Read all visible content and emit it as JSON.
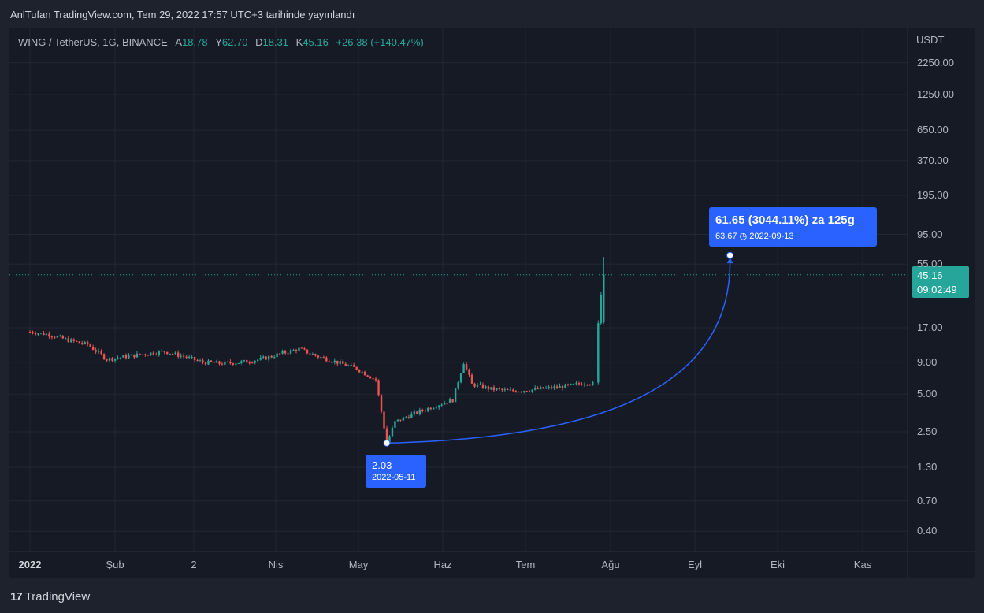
{
  "header": {
    "publication": "AnlTufan TradingView.com, Tem 29, 2022 17:57 UTC+3 tarihinde yayınlandı"
  },
  "legend": {
    "symbol": "WING / TetherUS, 1G, BINANCE",
    "open_label": "A",
    "open": "18.78",
    "high_label": "Y",
    "high": "62.70",
    "low_label": "D",
    "low": "18.31",
    "close_label": "K",
    "close": "45.16",
    "change": "+26.38 (+140.47%)"
  },
  "axis": {
    "currency": "USDT",
    "y_ticks": [
      "2250.00",
      "1250.00",
      "650.00",
      "370.00",
      "195.00",
      "95.00",
      "55.00",
      "17.00",
      "9.00",
      "5.00",
      "2.50",
      "1.30",
      "0.70",
      "0.40"
    ],
    "x_ticks": [
      "2022",
      "Şub",
      "2",
      "Nis",
      "May",
      "Haz",
      "Tem",
      "Ağu",
      "Eyl",
      "Eki",
      "Kas"
    ]
  },
  "last_price": {
    "price": "45.16",
    "countdown": "09:02:49"
  },
  "annotation": {
    "target_line1": "61.65 (3044.11%) za 125g",
    "target_price": "63.67",
    "target_date": "2022-09-13",
    "start_price": "2.03",
    "start_date": "2022-05-11"
  },
  "colors": {
    "up": "#26a69a",
    "down": "#ef5350",
    "accent": "#2962ff",
    "background": "#161a25"
  },
  "footer": {
    "brand": "TradingView"
  },
  "chart_data": {
    "type": "candlestick",
    "y_scale": "log",
    "x": [
      "2022-01-01",
      "2022-01-08",
      "2022-01-15",
      "2022-01-22",
      "2022-01-29",
      "2022-02-05",
      "2022-02-12",
      "2022-02-19",
      "2022-02-26",
      "2022-03-05",
      "2022-03-12",
      "2022-03-19",
      "2022-03-26",
      "2022-04-02",
      "2022-04-09",
      "2022-04-16",
      "2022-04-23",
      "2022-04-30",
      "2022-05-07",
      "2022-05-11",
      "2022-05-14",
      "2022-05-21",
      "2022-05-28",
      "2022-06-04",
      "2022-06-08",
      "2022-06-11",
      "2022-06-18",
      "2022-06-25",
      "2022-07-02",
      "2022-07-09",
      "2022-07-16",
      "2022-07-23",
      "2022-07-26",
      "2022-07-27",
      "2022-07-28",
      "2022-07-29"
    ],
    "close": [
      15.8,
      15.0,
      13.5,
      12.5,
      9.5,
      10.0,
      10.5,
      11.0,
      10.0,
      9.0,
      8.8,
      9.0,
      9.5,
      10.5,
      11.5,
      10.0,
      9.0,
      8.0,
      6.5,
      2.03,
      3.0,
      3.5,
      4.0,
      4.5,
      9.0,
      6.0,
      5.5,
      5.3,
      5.4,
      5.6,
      5.8,
      6.2,
      6.0,
      18.5,
      31.0,
      45.16
    ],
    "annotation_price_range": {
      "from": 2.03,
      "to": 63.67,
      "change": "3044.11%",
      "bars": "125g"
    }
  }
}
